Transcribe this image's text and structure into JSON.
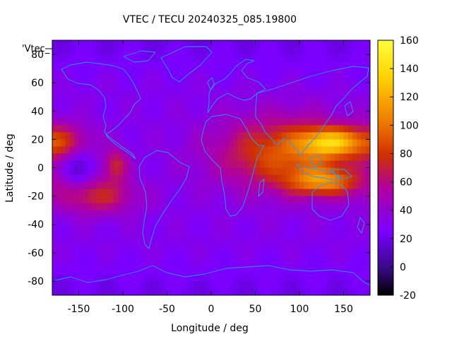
{
  "chart_data": {
    "type": "heatmap",
    "title": "VTEC / TECU 20240325_085.19800",
    "xlabel": "Longitude / deg",
    "ylabel": "Latitude / deg",
    "key_label": "'Vtec_",
    "xlim": [
      -180,
      180
    ],
    "ylim": [
      -90,
      90
    ],
    "xticks": [
      -150,
      -100,
      -50,
      0,
      50,
      100,
      150
    ],
    "yticks": [
      -80,
      -60,
      -40,
      -20,
      0,
      20,
      40,
      60,
      80
    ],
    "colorbar": {
      "range": [
        -20,
        160
      ],
      "ticks": [
        -20,
        0,
        20,
        40,
        60,
        80,
        100,
        120,
        140,
        160
      ],
      "palette": [
        "#000000",
        "#3a0a8a",
        "#7a00ff",
        "#b000a0",
        "#d03000",
        "#ee7a00",
        "#ffd000",
        "#ffff40"
      ]
    },
    "field": {
      "background_vtec": 30,
      "features": [
        {
          "name": "asia-pacific-maximum",
          "lon": 135,
          "lat": 18,
          "vtec": 138
        },
        {
          "name": "asia-pacific-southern-crest",
          "lon": 128,
          "lat": -10,
          "vtec": 128
        },
        {
          "name": "indian-ocean-band",
          "lon": 85,
          "lat": 10,
          "vtec": 100
        },
        {
          "name": "pacific-minimum",
          "lon": -150,
          "lat": 0,
          "vtec": 5
        },
        {
          "name": "pacific-crest-north",
          "lon": -170,
          "lat": 18,
          "vtec": 75
        },
        {
          "name": "pacific-crest-south",
          "lon": -130,
          "lat": -20,
          "vtec": 75
        },
        {
          "name": "pacific-local-peak",
          "lon": -108,
          "lat": 2,
          "vtec": 80
        }
      ]
    }
  },
  "colors": {
    "coastline": "#1ea0ff",
    "axis": "#000000"
  }
}
